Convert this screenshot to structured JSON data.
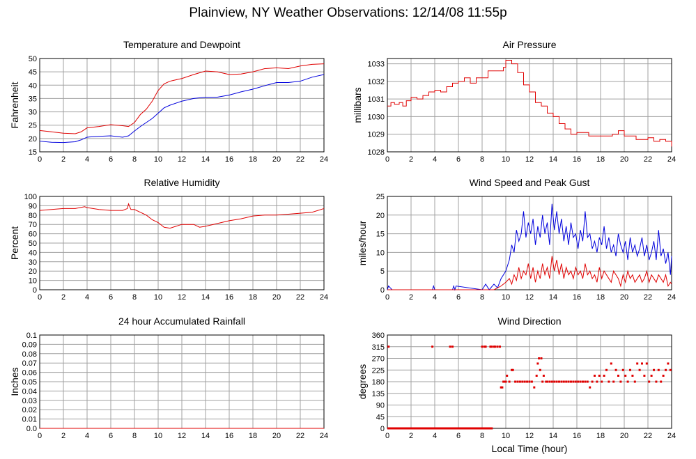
{
  "title": "Plainview, NY Weather Observations: 12/14/08 11:55p",
  "xlabel_shared": "Local Time (hour)",
  "colors": {
    "red": "#e00000",
    "blue": "#0000dd",
    "grid": "#a0a0a0",
    "axis": "#000000"
  },
  "chart_data": [
    {
      "type": "line",
      "title": "Temperature and Dewpoint",
      "ylabel": "Fahrenheit",
      "xlabel": "",
      "xlim": [
        0,
        24
      ],
      "ylim": [
        15,
        50
      ],
      "xticks": [
        0,
        2,
        4,
        6,
        8,
        10,
        12,
        14,
        16,
        18,
        20,
        22,
        24
      ],
      "yticks": [
        15,
        20,
        25,
        30,
        35,
        40,
        45,
        50
      ],
      "grid": true,
      "series": [
        {
          "color": "#e00000",
          "x": [
            0,
            1,
            2,
            3,
            3.5,
            4,
            5,
            6,
            7,
            7.5,
            8,
            8.5,
            9,
            9.5,
            10,
            10.5,
            11,
            12,
            13,
            14,
            15,
            16,
            17,
            18,
            19,
            20,
            21,
            22,
            23,
            24
          ],
          "y": [
            23,
            22.5,
            22,
            21.8,
            22.5,
            24,
            24.5,
            25.2,
            24.8,
            24.5,
            26,
            29,
            31,
            34,
            38,
            40.5,
            41.5,
            42.5,
            44,
            45.3,
            45,
            44,
            44.2,
            45,
            46.2,
            46.5,
            46.2,
            47.2,
            47.8,
            48
          ]
        },
        {
          "color": "#0000dd",
          "x": [
            0,
            1,
            2,
            3,
            3.5,
            4,
            5,
            6,
            7,
            7.5,
            8,
            8.5,
            9,
            9.5,
            10,
            10.5,
            11,
            12,
            13,
            14,
            15,
            16,
            17,
            18,
            19,
            20,
            21,
            22,
            23,
            24
          ],
          "y": [
            19,
            18.6,
            18.5,
            18.8,
            19.5,
            20.5,
            20.8,
            21,
            20.5,
            21,
            22.8,
            24.5,
            26,
            27.5,
            29.5,
            31.5,
            32.5,
            34,
            35,
            35.5,
            35.5,
            36.3,
            37.5,
            38.5,
            39.8,
            41,
            41,
            41.5,
            43,
            44
          ]
        }
      ]
    },
    {
      "type": "line",
      "title": "Air Pressure",
      "ylabel": "millibars",
      "xlabel": "",
      "xlim": [
        0,
        24
      ],
      "ylim": [
        1028,
        1033.3
      ],
      "xticks": [
        0,
        2,
        4,
        6,
        8,
        10,
        12,
        14,
        16,
        18,
        20,
        22,
        24
      ],
      "yticks": [
        1028,
        1029,
        1030,
        1031,
        1032,
        1033
      ],
      "grid": true,
      "series": [
        {
          "color": "#e00000",
          "step": true,
          "x": [
            0,
            0.3,
            0.6,
            1,
            1.3,
            1.6,
            2,
            2.5,
            3,
            3.5,
            4,
            4.5,
            5,
            5.5,
            6,
            6.5,
            7,
            7.5,
            8,
            8.5,
            9,
            9.5,
            9.8,
            10,
            10.5,
            11,
            11.5,
            12,
            12.5,
            13,
            13.5,
            14,
            14.5,
            15,
            15.5,
            16,
            17,
            18,
            19,
            19.5,
            20,
            21,
            22,
            22.5,
            23,
            23.5,
            24
          ],
          "y": [
            1030.6,
            1030.8,
            1030.7,
            1030.8,
            1030.6,
            1030.9,
            1031.1,
            1031.0,
            1031.2,
            1031.4,
            1031.5,
            1031.4,
            1031.7,
            1031.9,
            1032.0,
            1032.2,
            1031.9,
            1032.2,
            1032.2,
            1032.6,
            1032.6,
            1032.6,
            1032.8,
            1033.2,
            1033.0,
            1032.5,
            1031.8,
            1031.4,
            1030.8,
            1030.6,
            1030.2,
            1030.0,
            1029.6,
            1029.3,
            1029.0,
            1029.1,
            1028.9,
            1028.9,
            1029.0,
            1029.2,
            1028.9,
            1028.7,
            1028.8,
            1028.6,
            1028.7,
            1028.6,
            1028.3
          ]
        }
      ]
    },
    {
      "type": "line",
      "title": "Relative Humidity",
      "ylabel": "Percent",
      "xlabel": "",
      "xlim": [
        0,
        24
      ],
      "ylim": [
        0,
        100
      ],
      "xticks": [
        0,
        2,
        4,
        6,
        8,
        10,
        12,
        14,
        16,
        18,
        20,
        22,
        24
      ],
      "yticks": [
        0,
        10,
        20,
        30,
        40,
        50,
        60,
        70,
        80,
        90,
        100
      ],
      "grid": true,
      "series": [
        {
          "color": "#e00000",
          "x": [
            0,
            1,
            2,
            3,
            3.8,
            4,
            5,
            6,
            7,
            7.4,
            7.5,
            7.7,
            8,
            8.5,
            9,
            9.5,
            10,
            10.5,
            11,
            11.5,
            12,
            13,
            13.5,
            14,
            15,
            16,
            17,
            18,
            19,
            20,
            21,
            22,
            23,
            24
          ],
          "y": [
            85,
            86,
            87,
            87,
            89,
            88,
            86,
            85,
            85,
            87,
            92,
            86,
            86,
            83,
            80,
            75,
            72,
            67,
            66,
            68,
            70,
            70,
            67,
            68,
            71,
            74,
            76,
            79,
            80,
            80,
            81,
            82,
            83,
            87
          ]
        }
      ]
    },
    {
      "type": "line",
      "title": "Wind Speed and Peak Gust",
      "ylabel": "miles/hour",
      "xlabel": "",
      "xlim": [
        0,
        24
      ],
      "ylim": [
        0,
        25
      ],
      "xticks": [
        0,
        2,
        4,
        6,
        8,
        10,
        12,
        14,
        16,
        18,
        20,
        22,
        24
      ],
      "yticks": [
        0,
        5,
        10,
        15,
        20,
        25
      ],
      "grid": true,
      "series": [
        {
          "color": "#0000dd",
          "x": [
            0,
            0.1,
            0.25,
            0.4,
            3.8,
            3.9,
            4.0,
            5.5,
            5.6,
            5.7,
            5.8,
            8.0,
            8.3,
            8.6,
            9.0,
            9.3,
            9.6,
            10.0,
            10.3,
            10.5,
            10.7,
            10.9,
            11.1,
            11.3,
            11.5,
            11.7,
            11.9,
            12.1,
            12.3,
            12.5,
            12.7,
            12.9,
            13.1,
            13.3,
            13.5,
            13.7,
            13.9,
            14.1,
            14.3,
            14.5,
            14.7,
            14.9,
            15.1,
            15.3,
            15.5,
            15.7,
            15.9,
            16.1,
            16.3,
            16.5,
            16.7,
            16.9,
            17.1,
            17.3,
            17.5,
            17.7,
            17.9,
            18.1,
            18.3,
            18.5,
            18.7,
            18.9,
            19.1,
            19.3,
            19.5,
            19.7,
            19.9,
            20.1,
            20.3,
            20.5,
            20.7,
            20.9,
            21.1,
            21.3,
            21.5,
            21.7,
            21.9,
            22.1,
            22.3,
            22.5,
            22.7,
            22.9,
            23.1,
            23.3,
            23.5,
            23.7,
            23.9,
            24.0
          ],
          "y": [
            0,
            1,
            0.5,
            0,
            0,
            1,
            0,
            0,
            1,
            0,
            1,
            0,
            1.5,
            0,
            1.5,
            0.5,
            3,
            5,
            8,
            12,
            10,
            16,
            13,
            15,
            21,
            14,
            18,
            15,
            19,
            12,
            17,
            14,
            20,
            15,
            18,
            12,
            23,
            16,
            21,
            15,
            19,
            13,
            17,
            12,
            18,
            14,
            15,
            11,
            16,
            13,
            21,
            14,
            15,
            11,
            13,
            10,
            14,
            12,
            17,
            11,
            14,
            10,
            12,
            9,
            15,
            12,
            10,
            13,
            8,
            14,
            10,
            12,
            9,
            11,
            14,
            9,
            12,
            8,
            10,
            13,
            8,
            16,
            9,
            11,
            7,
            10,
            4,
            9
          ]
        },
        {
          "color": "#e00000",
          "x": [
            0,
            9.0,
            9.3,
            9.6,
            10.0,
            10.3,
            10.5,
            10.7,
            10.9,
            11.1,
            11.3,
            11.5,
            11.7,
            11.9,
            12.1,
            12.3,
            12.5,
            12.7,
            12.9,
            13.1,
            13.3,
            13.5,
            13.7,
            13.9,
            14.1,
            14.3,
            14.5,
            14.7,
            14.9,
            15.1,
            15.3,
            15.5,
            15.7,
            15.9,
            16.1,
            16.3,
            16.5,
            16.7,
            16.9,
            17.1,
            17.3,
            17.5,
            17.7,
            17.9,
            18.1,
            18.3,
            18.5,
            18.7,
            18.9,
            19.1,
            19.3,
            19.5,
            19.7,
            19.9,
            20.1,
            20.3,
            20.5,
            20.7,
            20.9,
            21.1,
            21.3,
            21.5,
            21.7,
            21.9,
            22.1,
            22.3,
            22.5,
            22.7,
            22.9,
            23.1,
            23.3,
            23.5,
            23.7,
            23.9,
            24.0
          ],
          "y": [
            0,
            0,
            0.5,
            1,
            2,
            3,
            1.5,
            4,
            2.5,
            6,
            3,
            5,
            4,
            7,
            3,
            6,
            2,
            5,
            3,
            7,
            4,
            6,
            3,
            9,
            5,
            8,
            4,
            7,
            3,
            6,
            4,
            5,
            3,
            6,
            4,
            5,
            3,
            7,
            4,
            5,
            3,
            4,
            2,
            6,
            3,
            5,
            4,
            3,
            2,
            5,
            4,
            3,
            1,
            4,
            2,
            5,
            3,
            4,
            2,
            3,
            4,
            2,
            3,
            5,
            2,
            4,
            3,
            2,
            4,
            3,
            2,
            4,
            1,
            2,
            1.5
          ]
        }
      ]
    },
    {
      "type": "line",
      "title": "24 hour Accumulated Rainfall",
      "ylabel": "Inches",
      "xlabel": "",
      "xlim": [
        0,
        24
      ],
      "ylim": [
        0,
        0.1
      ],
      "xticks": [
        0,
        2,
        4,
        6,
        8,
        10,
        12,
        14,
        16,
        18,
        20,
        22,
        24
      ],
      "yticks": [
        0.0,
        0.01,
        0.02,
        0.03,
        0.04,
        0.05,
        0.06,
        0.07,
        0.08,
        0.09,
        0.1
      ],
      "ytick_labels": [
        "0.0",
        "0.01",
        "0.02",
        "0.03",
        "0.04",
        "0.05",
        "0.06",
        "0.07",
        "0.08",
        "0.09",
        "0.1"
      ],
      "grid": true,
      "series": [
        {
          "color": "#e00000",
          "x": [
            0,
            24
          ],
          "y": [
            0,
            0
          ]
        }
      ]
    },
    {
      "type": "scatter",
      "title": "Wind Direction",
      "ylabel": "degrees",
      "xlabel": "Local Time (hour)",
      "xlim": [
        0,
        24
      ],
      "ylim": [
        0,
        360
      ],
      "xticks": [
        0,
        2,
        4,
        6,
        8,
        10,
        12,
        14,
        16,
        18,
        20,
        22,
        24
      ],
      "yticks": [
        0,
        45,
        90,
        135,
        180,
        225,
        270,
        315,
        360
      ],
      "grid": true,
      "series": [
        {
          "color": "#e00000",
          "x": [
            0.1,
            3.8,
            5.3,
            5.5,
            8.0,
            8.2,
            8.3,
            8.7,
            8.8,
            9.0,
            9.1,
            9.3,
            9.5,
            9.6,
            9.7,
            9.8,
            9.9,
            10.0,
            10.1,
            10.3,
            10.5,
            10.6,
            10.8,
            11.0,
            11.2,
            11.4,
            11.6,
            11.8,
            12.0,
            12.2,
            12.4,
            12.6,
            12.7,
            12.8,
            12.9,
            13.0,
            13.1,
            13.2,
            13.4,
            13.5,
            13.7,
            13.9,
            14.1,
            14.3,
            14.5,
            14.7,
            14.9,
            15.1,
            15.3,
            15.5,
            15.7,
            15.9,
            16.1,
            16.3,
            16.5,
            16.7,
            16.9,
            17.1,
            17.3,
            17.5,
            17.7,
            17.9,
            18.1,
            18.3,
            18.5,
            18.7,
            18.9,
            19.1,
            19.3,
            19.5,
            19.7,
            19.9,
            20.1,
            20.3,
            20.5,
            20.7,
            20.9,
            21.1,
            21.3,
            21.5,
            21.7,
            21.9,
            22.1,
            22.3,
            22.5,
            22.7,
            22.9,
            23.1,
            23.3,
            23.5,
            23.7,
            23.9
          ],
          "y": [
            315,
            315,
            315,
            315,
            315,
            315,
            315,
            315,
            315,
            315,
            315,
            315,
            315,
            158,
            158,
            180,
            180,
            180,
            203,
            180,
            225,
            225,
            180,
            180,
            180,
            180,
            180,
            180,
            180,
            180,
            158,
            203,
            250,
            270,
            225,
            270,
            180,
            203,
            180,
            180,
            180,
            180,
            180,
            180,
            180,
            180,
            180,
            180,
            180,
            180,
            180,
            180,
            180,
            180,
            180,
            180,
            180,
            158,
            180,
            203,
            180,
            203,
            180,
            203,
            225,
            180,
            250,
            180,
            225,
            203,
            180,
            225,
            203,
            180,
            225,
            203,
            180,
            250,
            225,
            250,
            203,
            250,
            180,
            203,
            225,
            180,
            225,
            180,
            203,
            225,
            250,
            225
          ]
        },
        {
          "color": "#e00000",
          "line": true,
          "x": [
            0,
            8.9
          ],
          "y": [
            0,
            0
          ]
        }
      ]
    }
  ]
}
